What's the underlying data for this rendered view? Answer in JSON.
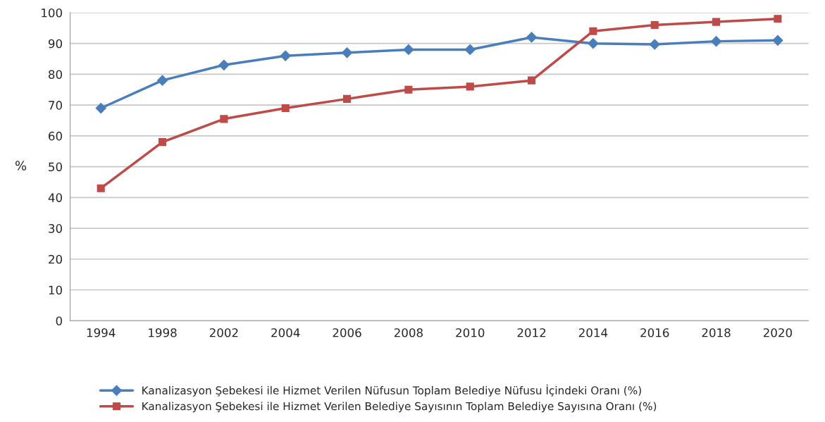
{
  "chart_data": {
    "type": "line",
    "ylabel": "%",
    "categories": [
      "1994",
      "1998",
      "2002",
      "2004",
      "2006",
      "2008",
      "2010",
      "2012",
      "2014",
      "2016",
      "2018",
      "2020"
    ],
    "series": [
      {
        "name": "Kanalizasyon Şebekesi ile Hizmet Verilen Nüfusun Toplam Belediye Nüfusu İçindeki Oranı (%)",
        "color": "#4a7ebb",
        "marker": "diamond",
        "values": [
          69,
          78,
          83,
          86,
          87,
          88,
          88,
          92,
          90,
          89.7,
          90.7,
          91
        ]
      },
      {
        "name": "Kanalizasyon Şebekesi ile Hizmet Verilen Belediye Sayısının Toplam Belediye Sayısına Oranı (%)",
        "color": "#be4b48",
        "marker": "square",
        "values": [
          43,
          58,
          65.5,
          69,
          72,
          75,
          76,
          78,
          94,
          96,
          97,
          98
        ]
      }
    ],
    "ylim": [
      0,
      100
    ],
    "yticks": [
      0,
      10,
      20,
      30,
      40,
      50,
      60,
      70,
      80,
      90,
      100
    ],
    "grid": "y",
    "legend": "bottom",
    "line_style": "solid"
  }
}
